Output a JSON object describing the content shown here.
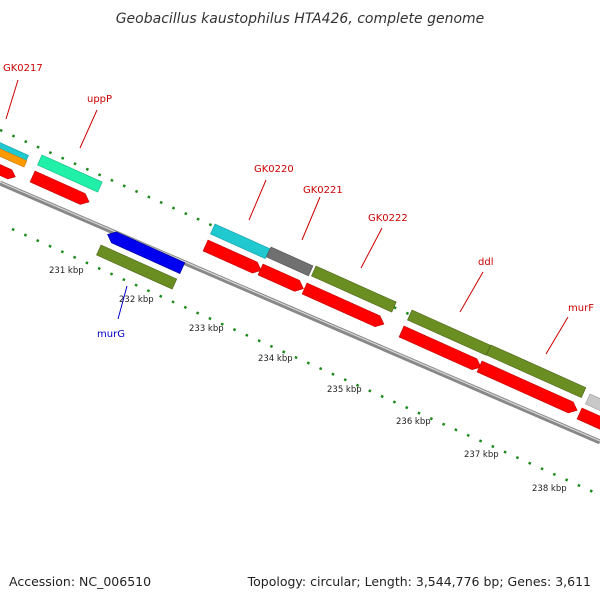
{
  "title": "Geobacillus kaustophilus HTA426, complete genome",
  "footer": {
    "accession": "Accession: NC_006510",
    "summary": "Topology: circular; Length: 3,544,776 bp; Genes: 3,611"
  },
  "colors": {
    "cds_red": "#ff0000",
    "olive": "#6b8e23",
    "cyan": "#20c8d0",
    "teal_green": "#20f0a8",
    "gray": "#707070",
    "blue": "#0000ee",
    "orange": "#ff9900",
    "dots": "#1a8a1a",
    "backbone": "#888888"
  },
  "ticks": [
    "231 kbp",
    "232 kbp",
    "233 kbp",
    "234 kbp",
    "235 kbp",
    "236 kbp",
    "237 kbp",
    "238 kbp"
  ],
  "labels": {
    "gk0217": "GK0217",
    "uppP": "uppP",
    "gk0220": "GK0220",
    "gk0221": "GK0221",
    "gk0222": "GK0222",
    "ddl": "ddl",
    "murF": "murF",
    "murG": "murG"
  }
}
